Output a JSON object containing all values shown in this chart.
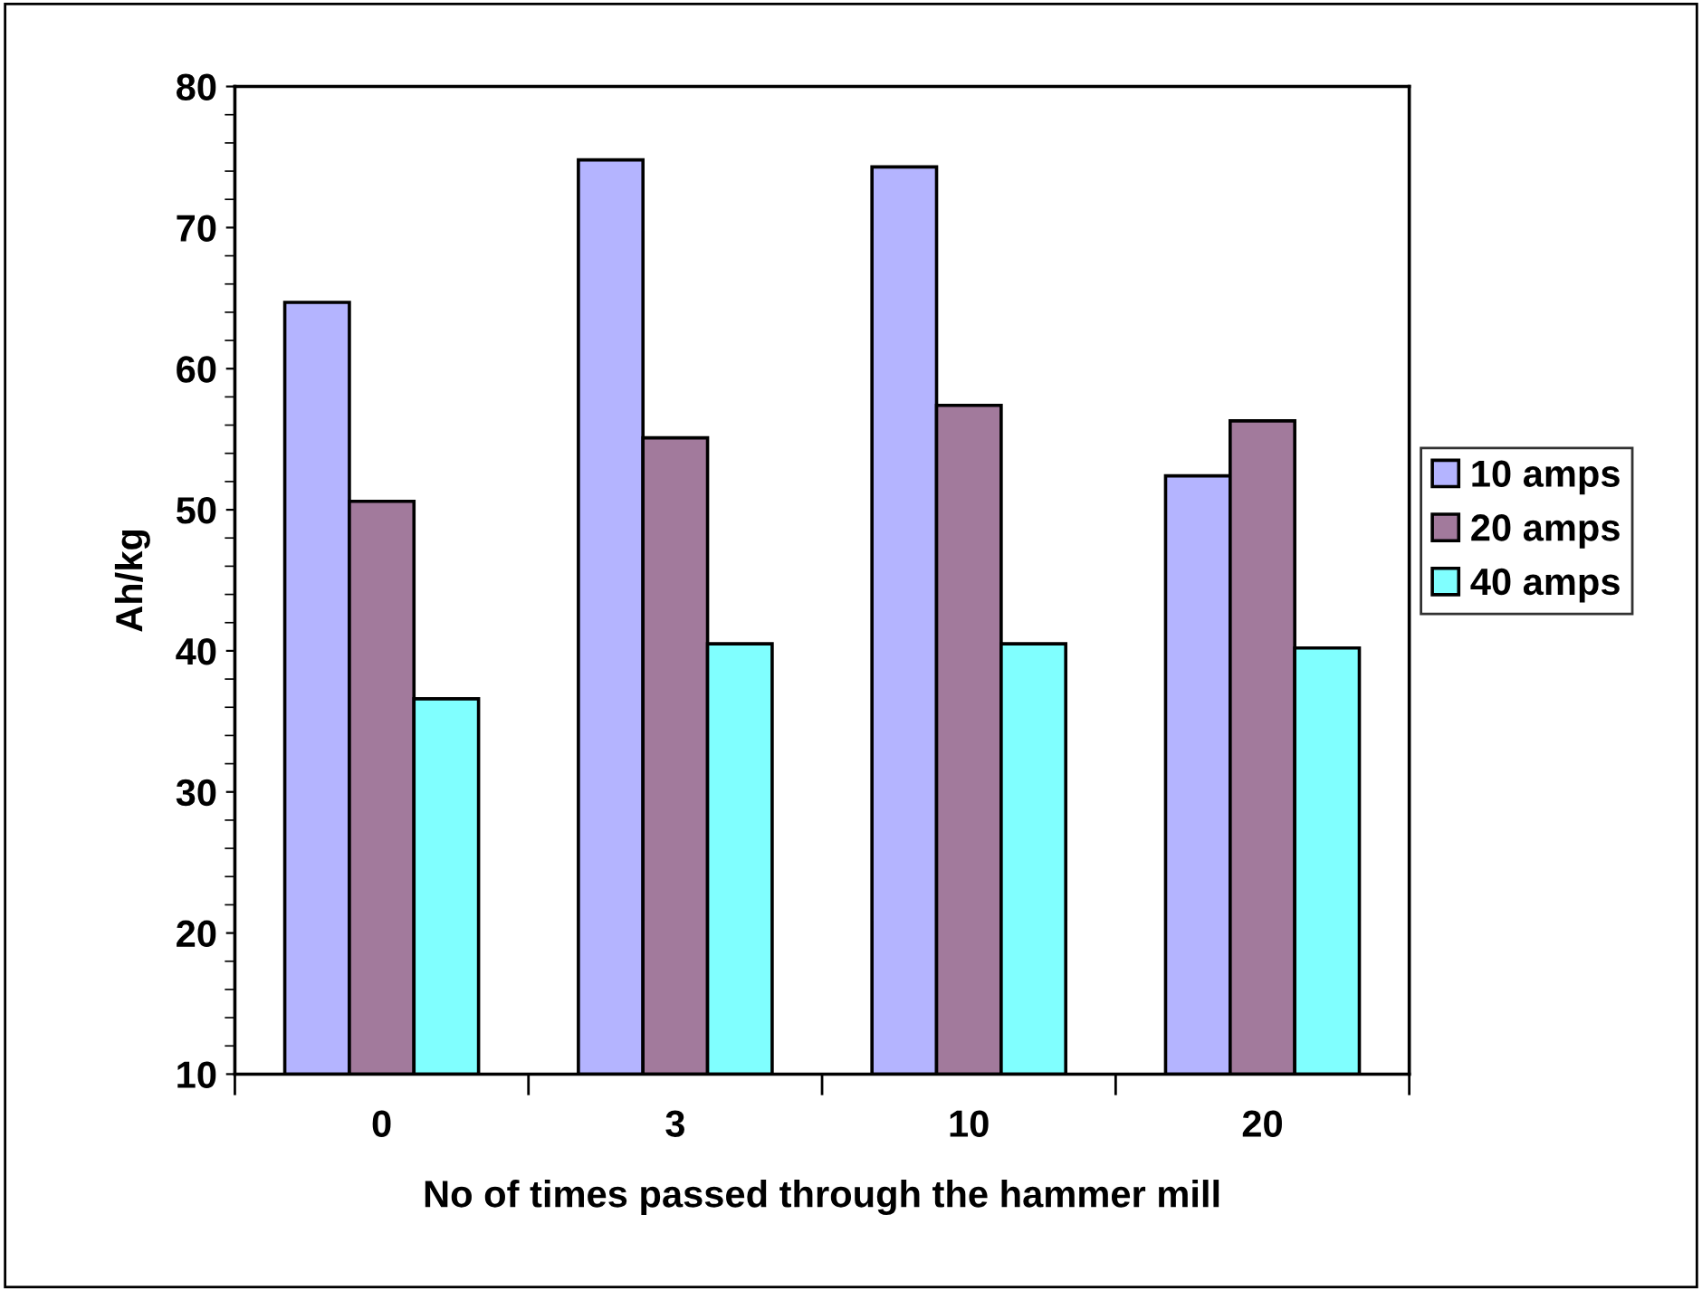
{
  "chart_data": {
    "type": "bar",
    "xlabel": "No of times passed through the hammer mill",
    "ylabel": "Ah/kg",
    "categories": [
      "0",
      "3",
      "10",
      "20"
    ],
    "series": [
      {
        "name": "10 amps",
        "color": "#b4b4ff",
        "values": [
          64.7,
          74.8,
          74.3,
          52.4
        ]
      },
      {
        "name": "20 amps",
        "color": "#a27a9c",
        "values": [
          50.6,
          55.1,
          57.4,
          56.3
        ]
      },
      {
        "name": "40 amps",
        "color": "#80ffff",
        "values": [
          36.6,
          40.5,
          40.5,
          40.2
        ]
      }
    ],
    "ylim": [
      10,
      80
    ],
    "yticks": [
      10,
      20,
      30,
      40,
      50,
      60,
      70,
      80
    ],
    "grid": false,
    "legend": "right"
  }
}
